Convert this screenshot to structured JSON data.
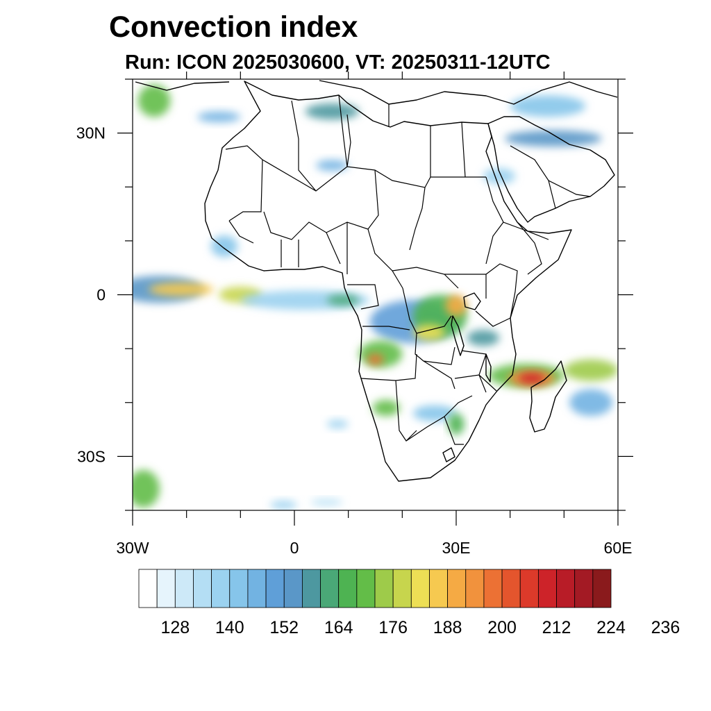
{
  "title": "Convection index",
  "subtitle": "Run: ICON 2025030600,  VT: 20250311-12UTC",
  "map": {
    "projection": "cylindrical-equidistant",
    "lon_range": [
      -30,
      60
    ],
    "lat_range": [
      -40,
      40
    ],
    "x_ticks": [
      {
        "lon": -30,
        "label": "30W"
      },
      {
        "lon": 0,
        "label": "0"
      },
      {
        "lon": 30,
        "label": "30E"
      },
      {
        "lon": 60,
        "label": "60E"
      }
    ],
    "y_ticks": [
      {
        "lat": 30,
        "label": "30N"
      },
      {
        "lat": 0,
        "label": "0"
      },
      {
        "lat": -30,
        "label": "30S"
      }
    ],
    "minor_lon_step": 10,
    "minor_lat_step": 10
  },
  "colorbar": {
    "colors": [
      "#ffffff",
      "#e6f4fc",
      "#cde9f8",
      "#b4def4",
      "#9bd2f0",
      "#86c5ea",
      "#72b3e2",
      "#5f9fd8",
      "#5a97c8",
      "#4d98a0",
      "#4aa877",
      "#4eb352",
      "#63bd48",
      "#9ecb4a",
      "#c7d54d",
      "#eddf55",
      "#f6c950",
      "#f5aa44",
      "#f1923d",
      "#ec7134",
      "#e4552d",
      "#dc3a2a",
      "#cd2329",
      "#b81c27",
      "#a31a24",
      "#8a1a1c"
    ],
    "labels": [
      "128",
      "140",
      "152",
      "164",
      "176",
      "188",
      "200",
      "212",
      "224",
      "236"
    ],
    "label_start_index": 2,
    "label_every": 3
  },
  "convection_cells": [
    {
      "lon": -26,
      "lat": 36,
      "rx": 3,
      "ry": 3,
      "level": 12
    },
    {
      "lon": -14,
      "lat": 33,
      "rx": 4,
      "ry": 1,
      "level": 6
    },
    {
      "lon": 7,
      "lat": 34,
      "rx": 5,
      "ry": 1.5,
      "level": 9
    },
    {
      "lon": 48,
      "lat": 29,
      "rx": 9,
      "ry": 1.5,
      "level": 8
    },
    {
      "lon": 47,
      "lat": 35,
      "rx": 7,
      "ry": 2,
      "level": 5
    },
    {
      "lon": 38,
      "lat": 22,
      "rx": 3,
      "ry": 1.5,
      "level": 4
    },
    {
      "lon": 7,
      "lat": 24,
      "rx": 3,
      "ry": 1,
      "level": 6
    },
    {
      "lon": -13,
      "lat": 9,
      "rx": 2.5,
      "ry": 2,
      "level": 5
    },
    {
      "lon": -25,
      "lat": 1,
      "rx": 8,
      "ry": 2.5,
      "level": 8
    },
    {
      "lon": -21,
      "lat": 1,
      "rx": 6,
      "ry": 1.3,
      "level": 16
    },
    {
      "lon": -10,
      "lat": 0,
      "rx": 4,
      "ry": 1.5,
      "level": 14
    },
    {
      "lon": 2,
      "lat": -1,
      "rx": 12,
      "ry": 1.8,
      "level": 4
    },
    {
      "lon": 9,
      "lat": -1,
      "rx": 3,
      "ry": 1,
      "level": 10
    },
    {
      "lon": 22,
      "lat": -5,
      "rx": 8,
      "ry": 4,
      "level": 7
    },
    {
      "lon": 27,
      "lat": -4,
      "rx": 5,
      "ry": 4,
      "level": 11
    },
    {
      "lon": 25,
      "lat": -7,
      "rx": 3,
      "ry": 1.5,
      "level": 15
    },
    {
      "lon": 30,
      "lat": -2,
      "rx": 2,
      "ry": 2,
      "level": 17
    },
    {
      "lon": 16,
      "lat": -11,
      "rx": 4,
      "ry": 2.5,
      "level": 12
    },
    {
      "lon": 15,
      "lat": -12,
      "rx": 1.5,
      "ry": 1,
      "level": 19
    },
    {
      "lon": 35,
      "lat": -8,
      "rx": 3,
      "ry": 1.5,
      "level": 9
    },
    {
      "lon": 43,
      "lat": -15,
      "rx": 7,
      "ry": 2.2,
      "level": 12
    },
    {
      "lon": 44,
      "lat": -15.5,
      "rx": 4.5,
      "ry": 1.5,
      "level": 18
    },
    {
      "lon": 44,
      "lat": -15.5,
      "rx": 2.5,
      "ry": 1,
      "level": 22
    },
    {
      "lon": 55,
      "lat": -14,
      "rx": 5,
      "ry": 2,
      "level": 13
    },
    {
      "lon": 55,
      "lat": -20,
      "rx": 4,
      "ry": 2.5,
      "level": 6
    },
    {
      "lon": 17,
      "lat": -21,
      "rx": 2.5,
      "ry": 1.5,
      "level": 12
    },
    {
      "lon": 26,
      "lat": -22,
      "rx": 4,
      "ry": 1.5,
      "level": 5
    },
    {
      "lon": 30,
      "lat": -24,
      "rx": 1.5,
      "ry": 2,
      "level": 11
    },
    {
      "lon": 8,
      "lat": -24,
      "rx": 2,
      "ry": 0.8,
      "level": 4
    },
    {
      "lon": -28,
      "lat": -36,
      "rx": 3,
      "ry": 3.5,
      "level": 12
    },
    {
      "lon": -2,
      "lat": -39,
      "rx": 2.5,
      "ry": 0.8,
      "level": 4
    },
    {
      "lon": 6,
      "lat": -38.5,
      "rx": 3,
      "ry": 0.6,
      "level": 3
    }
  ]
}
